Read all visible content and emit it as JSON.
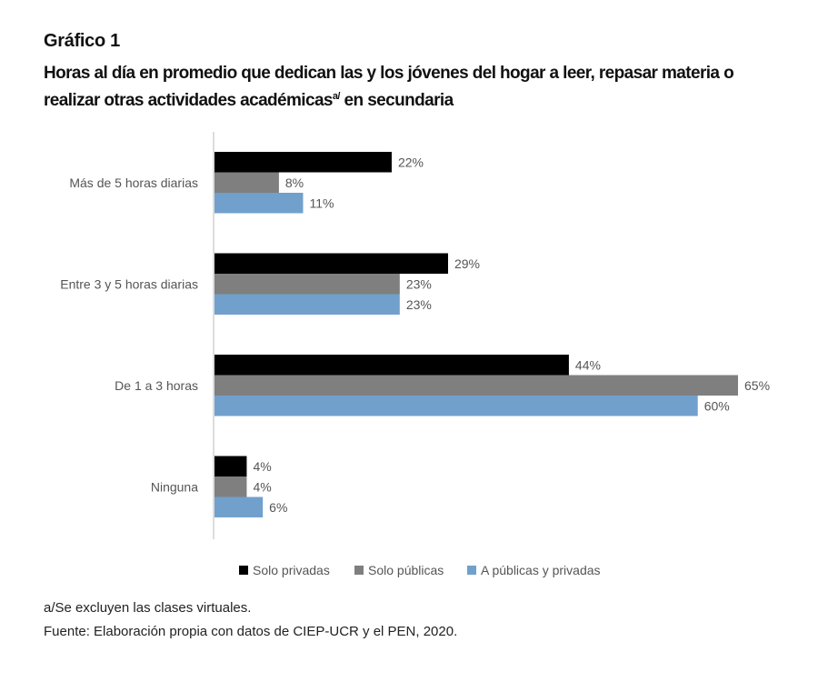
{
  "kicker": "Gráfico 1",
  "title_main": "Horas al día en promedio que dedican las y los jóvenes del hogar a leer, repasar materia o realizar otras actividades académicas",
  "title_sup": "a/",
  "title_tail": " en secundaria",
  "footnotes": {
    "note": "a/Se excluyen las clases virtuales.",
    "source": "Fuente: Elaboración propia con datos de CIEP-UCR y el PEN, 2020."
  },
  "chart_data": {
    "type": "bar",
    "orientation": "horizontal",
    "value_format": "percent",
    "xlim": [
      0,
      65
    ],
    "grid": false,
    "legend_position": "bottom",
    "categories": [
      "Más de 5 horas diarias",
      "Entre 3 y 5 horas diarias",
      "De 1 a 3 horas",
      "Ninguna"
    ],
    "series": [
      {
        "name": "Solo privadas",
        "color": "#000000",
        "values": [
          22,
          29,
          44,
          4
        ]
      },
      {
        "name": "Solo públicas",
        "color": "#7f7f7f",
        "values": [
          8,
          23,
          65,
          4
        ]
      },
      {
        "name": "A públicas y privadas",
        "color": "#71a0cd",
        "values": [
          11,
          23,
          60,
          6
        ]
      }
    ]
  }
}
